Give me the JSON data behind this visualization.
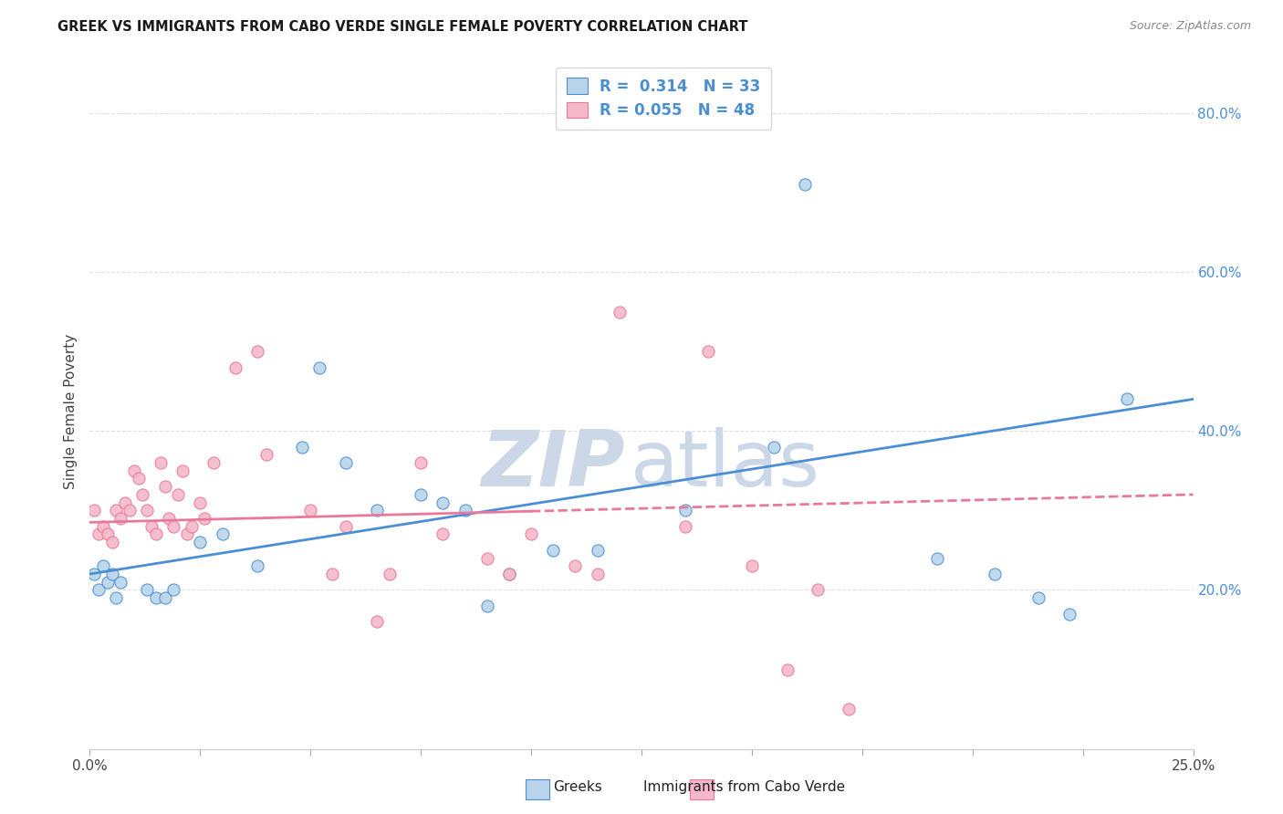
{
  "title": "GREEK VS IMMIGRANTS FROM CABO VERDE SINGLE FEMALE POVERTY CORRELATION CHART",
  "source": "Source: ZipAtlas.com",
  "ylabel": "Single Female Poverty",
  "ylabel_right_ticks": [
    "20.0%",
    "40.0%",
    "60.0%",
    "80.0%"
  ],
  "ylabel_right_vals": [
    0.2,
    0.4,
    0.6,
    0.8
  ],
  "legend_label1": "Greeks",
  "legend_label2": "Immigrants from Cabo Verde",
  "R1": "0.314",
  "N1": "33",
  "R2": "0.055",
  "N2": "48",
  "color_blue": "#b8d4ea",
  "color_pink": "#f5b8c8",
  "line_blue": "#4a8fd4",
  "line_pink": "#e8799a",
  "xlim": [
    0.0,
    0.25
  ],
  "ylim": [
    0.0,
    0.85
  ],
  "xticks": [
    0.0,
    0.025,
    0.05,
    0.075,
    0.1,
    0.125,
    0.15,
    0.175,
    0.2,
    0.225,
    0.25
  ],
  "blue_x": [
    0.001,
    0.002,
    0.003,
    0.004,
    0.005,
    0.006,
    0.007,
    0.013,
    0.015,
    0.017,
    0.019,
    0.025,
    0.03,
    0.038,
    0.048,
    0.052,
    0.058,
    0.065,
    0.075,
    0.08,
    0.085,
    0.09,
    0.095,
    0.105,
    0.115,
    0.135,
    0.155,
    0.162,
    0.192,
    0.205,
    0.215,
    0.222,
    0.235
  ],
  "blue_y": [
    0.22,
    0.2,
    0.23,
    0.21,
    0.22,
    0.19,
    0.21,
    0.2,
    0.19,
    0.19,
    0.2,
    0.26,
    0.27,
    0.23,
    0.38,
    0.48,
    0.36,
    0.3,
    0.32,
    0.31,
    0.3,
    0.18,
    0.22,
    0.25,
    0.25,
    0.3,
    0.38,
    0.71,
    0.24,
    0.22,
    0.19,
    0.17,
    0.44
  ],
  "pink_x": [
    0.001,
    0.002,
    0.003,
    0.004,
    0.005,
    0.006,
    0.007,
    0.008,
    0.009,
    0.01,
    0.011,
    0.012,
    0.013,
    0.014,
    0.015,
    0.016,
    0.017,
    0.018,
    0.019,
    0.02,
    0.021,
    0.022,
    0.023,
    0.025,
    0.026,
    0.028,
    0.033,
    0.038,
    0.04,
    0.05,
    0.055,
    0.058,
    0.065,
    0.068,
    0.075,
    0.08,
    0.09,
    0.095,
    0.1,
    0.11,
    0.115,
    0.12,
    0.135,
    0.14,
    0.15,
    0.158,
    0.165,
    0.172
  ],
  "pink_y": [
    0.3,
    0.27,
    0.28,
    0.27,
    0.26,
    0.3,
    0.29,
    0.31,
    0.3,
    0.35,
    0.34,
    0.32,
    0.3,
    0.28,
    0.27,
    0.36,
    0.33,
    0.29,
    0.28,
    0.32,
    0.35,
    0.27,
    0.28,
    0.31,
    0.29,
    0.36,
    0.48,
    0.5,
    0.37,
    0.3,
    0.22,
    0.28,
    0.16,
    0.22,
    0.36,
    0.27,
    0.24,
    0.22,
    0.27,
    0.23,
    0.22,
    0.55,
    0.28,
    0.5,
    0.23,
    0.1,
    0.2,
    0.05
  ],
  "background_color": "#ffffff",
  "grid_color": "#e0e0e0",
  "watermark_zip": "ZIP",
  "watermark_atlas": "atlas",
  "watermark_color": "#ccd8e8"
}
